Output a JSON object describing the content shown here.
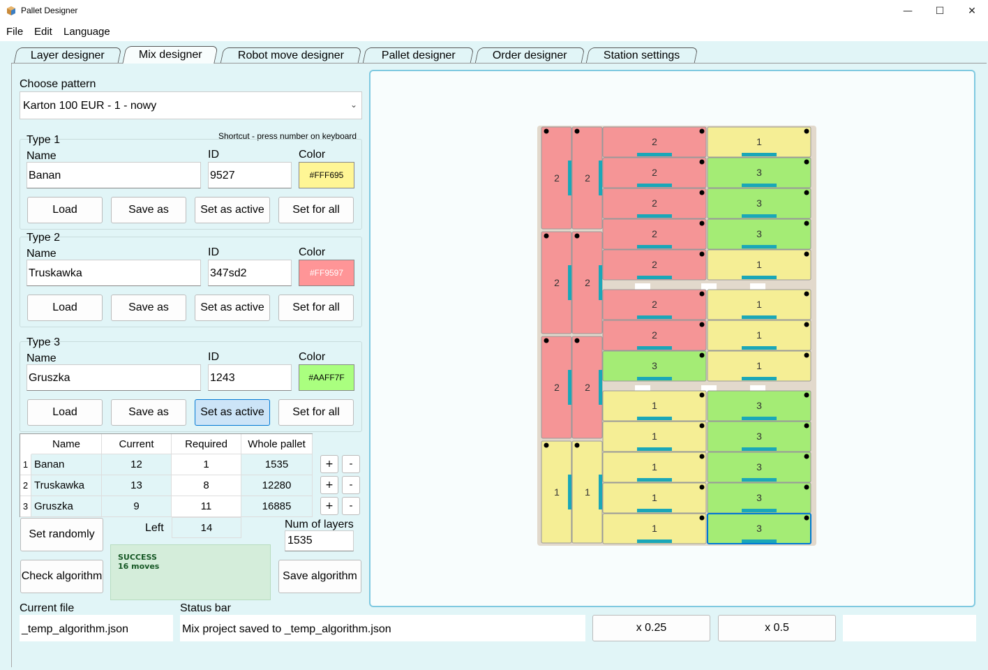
{
  "window": {
    "title": "Pallet Designer",
    "minimize": "—",
    "maximize": "☐",
    "close": "✕"
  },
  "menu": [
    "File",
    "Edit",
    "Language"
  ],
  "tabs": [
    "Layer designer",
    "Mix designer",
    "Robot move designer",
    "Pallet designer",
    "Order designer",
    "Station settings"
  ],
  "pattern": {
    "label": "Choose pattern",
    "value": "Karton 100 EUR - 1 - nowy"
  },
  "shortcut_hint": "Shortcut - press number on keyboard",
  "field_labels": {
    "name": "Name",
    "id": "ID",
    "color": "Color"
  },
  "buttons": {
    "load": "Load",
    "save_as": "Save as",
    "set_active": "Set as active",
    "set_all": "Set for all"
  },
  "types": [
    {
      "title": "Type 1",
      "name": "Banan",
      "id": "9527",
      "color": "#FFF695"
    },
    {
      "title": "Type 2",
      "name": "Truskawka",
      "id": "347sd2",
      "color": "#FF9597"
    },
    {
      "title": "Type 3",
      "name": "Gruszka",
      "id": "1243",
      "color": "#AAFF7F"
    }
  ],
  "table": {
    "headers": [
      "Name",
      "Current",
      "Required",
      "Whole pallet"
    ],
    "rows": [
      {
        "idx": "1",
        "name": "Banan",
        "current": "12",
        "required": "1",
        "whole": "1535"
      },
      {
        "idx": "2",
        "name": "Truskawka",
        "current": "13",
        "required": "8",
        "whole": "12280"
      },
      {
        "idx": "3",
        "name": "Gruszka",
        "current": "9",
        "required": "11",
        "whole": "16885"
      }
    ],
    "plus": "+",
    "minus": "-"
  },
  "controls": {
    "set_randomly": "Set randomly",
    "left_label": "Left",
    "left_value": "14",
    "num_layers_label": "Num of layers",
    "num_layers_value": "1535",
    "check_algorithm": "Check algorithm",
    "save_algorithm": "Save algorithm",
    "status_line1": "SUCCESS",
    "status_line2": "16 moves"
  },
  "footer": {
    "current_file_label": "Current file",
    "current_file": "_temp_algorithm.json",
    "status_bar_label": "Status bar",
    "status_bar": "Mix project saved to _temp_algorithm.json",
    "zoom1": "x 0.25",
    "zoom2": "x 0.5"
  },
  "colors": {
    "type1": "#f5ee95",
    "type2": "#f59596",
    "type3": "#a4ec75",
    "marker": "#1aa7b8"
  },
  "pallet": {
    "boxes": [
      {
        "t": 2,
        "label": "2",
        "col": "left1",
        "row": 0
      },
      {
        "t": 2,
        "label": "2",
        "col": "left2",
        "row": 0
      },
      {
        "t": 2,
        "label": "2",
        "col": "left1",
        "row": 1
      },
      {
        "t": 2,
        "label": "2",
        "col": "left2",
        "row": 1
      },
      {
        "t": 2,
        "label": "2",
        "col": "left1",
        "row": 2
      },
      {
        "t": 2,
        "label": "2",
        "col": "left2",
        "row": 2
      },
      {
        "t": 1,
        "label": "1",
        "col": "left1",
        "row": 3
      },
      {
        "t": 1,
        "label": "1",
        "col": "left2",
        "row": 3
      }
    ],
    "grid": [
      [
        "2",
        "1"
      ],
      [
        "2",
        "3"
      ],
      [
        "2",
        "3"
      ],
      [
        "2",
        "3"
      ],
      [
        "2",
        "1"
      ],
      [
        "2",
        "1"
      ],
      [
        "2",
        "1"
      ],
      [
        "3",
        "1"
      ],
      [
        "1",
        "3"
      ],
      [
        "1",
        "3"
      ],
      [
        "1",
        "3"
      ],
      [
        "1",
        "3"
      ],
      [
        "1",
        "3"
      ]
    ]
  }
}
